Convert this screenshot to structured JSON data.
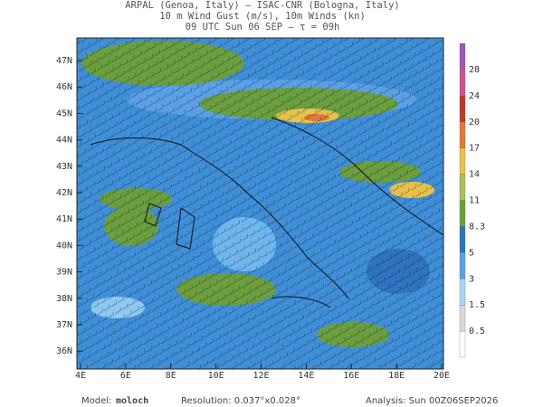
{
  "header": {
    "lines": [
      "ARPAL (Genoa, Italy)  –  ISAC-CNR (Bologna, Italy)",
      "10 m Wind Gust (m/s), 10m Winds (kn)",
      "09 UTC Sun 06 SEP  –  τ = 09h"
    ]
  },
  "map": {
    "lat_labels": [
      "47N",
      "46N",
      "45N",
      "44N",
      "43N",
      "42N",
      "41N",
      "40N",
      "39N",
      "38N",
      "37N",
      "36N"
    ],
    "lon_labels": [
      "4E",
      "6E",
      "8E",
      "10E",
      "12E",
      "14E",
      "16E",
      "18E",
      "20E"
    ]
  },
  "colorbar": {
    "labels": [
      "28",
      "24",
      "20",
      "17",
      "14",
      "11",
      "8.3",
      "5",
      "3",
      "1.5",
      "0.5"
    ]
  },
  "footer": {
    "model_label": "Model:",
    "model": "moloch",
    "resolution": "Resolution: 0.037°x0.028°",
    "analysis": "Analysis: Sun 00Z06SEP2026"
  }
}
